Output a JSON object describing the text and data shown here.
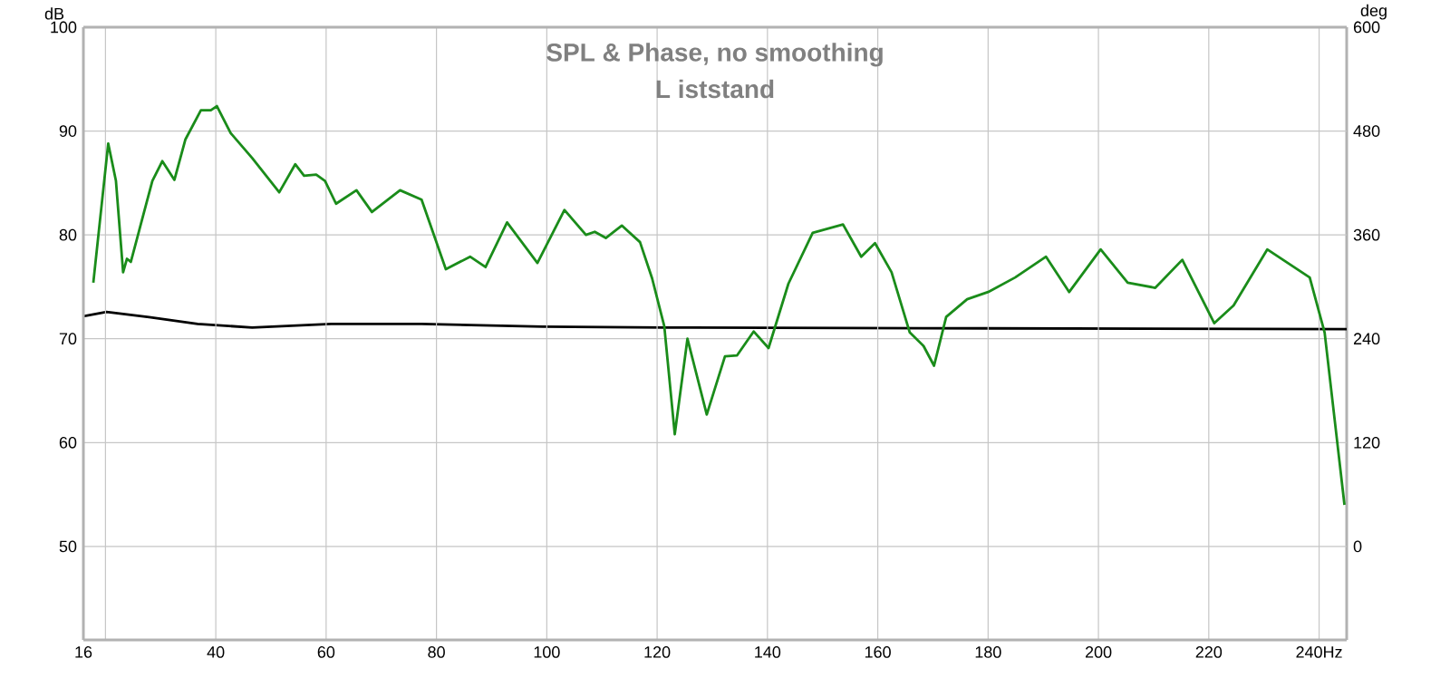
{
  "chart_data": {
    "type": "line",
    "title": "SPL & Phase, no smoothing",
    "subtitle": "L iststand",
    "ylabel": "dB",
    "y2label": "deg",
    "xlim": [
      16,
      245
    ],
    "xticks": [
      16,
      {
        "value": 20,
        "label": null
      },
      40,
      60,
      80,
      100,
      120,
      140,
      160,
      180,
      200,
      220,
      {
        "value": 240,
        "label": "240Hz"
      }
    ],
    "ylim": [
      41,
      100
    ],
    "yticks": [
      {
        "value": 41,
        "label": null
      },
      50,
      60,
      70,
      80,
      90,
      100
    ],
    "y2lim": [
      -108,
      600
    ],
    "y2ticks": [
      0,
      120,
      240,
      360,
      480,
      600
    ],
    "grid": true,
    "marker": "none",
    "line_style": "solid",
    "series": [
      {
        "color": "#1a8c1a",
        "x": [
          17.8,
          20.5,
          21.9,
          23.2,
          23.9,
          24.6,
          26.3,
          28.5,
          30.3,
          32.5,
          34.5,
          37.3,
          39.1,
          40.2,
          42.7,
          46.6,
          51.5,
          54.4,
          56.0,
          58.2,
          59.8,
          61.8,
          65.5,
          68.3,
          73.4,
          77.3,
          81.7,
          86.1,
          88.9,
          92.8,
          98.3,
          103.2,
          107.1,
          108.7,
          110.7,
          113.6,
          116.9,
          119.1,
          121.3,
          123.2,
          125.5,
          129.0,
          132.3,
          134.5,
          137.5,
          140.2,
          143.8,
          148.2,
          153.7,
          157.0,
          159.5,
          162.5,
          165.8,
          168.3,
          170.2,
          172.4,
          176.2,
          180.0,
          184.9,
          190.5,
          194.7,
          200.4,
          205.3,
          210.3,
          215.2,
          221.0,
          224.5,
          230.6,
          238.3,
          241.0,
          244.6
        ],
        "values": [
          75.4,
          88.8,
          85.2,
          76.4,
          77.7,
          77.4,
          80.8,
          85.2,
          87.1,
          85.3,
          89.2,
          92.0,
          92.0,
          92.4,
          89.8,
          87.4,
          84.1,
          86.8,
          85.7,
          85.8,
          85.2,
          83.0,
          84.3,
          82.2,
          84.3,
          83.4,
          76.7,
          77.9,
          76.9,
          81.2,
          77.3,
          82.4,
          80.0,
          80.3,
          79.7,
          80.9,
          79.3,
          75.8,
          71.2,
          60.8,
          70.0,
          62.7,
          68.3,
          68.4,
          70.7,
          69.1,
          75.3,
          80.2,
          81.0,
          77.9,
          79.2,
          76.4,
          70.6,
          69.3,
          67.4,
          72.1,
          73.8,
          74.5,
          75.9,
          77.9,
          74.5,
          78.6,
          75.4,
          74.9,
          77.6,
          71.5,
          73.2,
          78.6,
          75.9,
          70.6,
          54.0
        ]
      },
      {
        "color": "#000000",
        "axis": "y2",
        "x": [
          16,
          20.2,
          27.9,
          36.7,
          46.6,
          60.9,
          77.3,
          99.3,
          121.3,
          180,
          245
        ],
        "values": [
          266,
          271,
          265,
          257,
          253,
          257,
          257,
          254,
          253,
          252,
          251
        ]
      }
    ]
  }
}
